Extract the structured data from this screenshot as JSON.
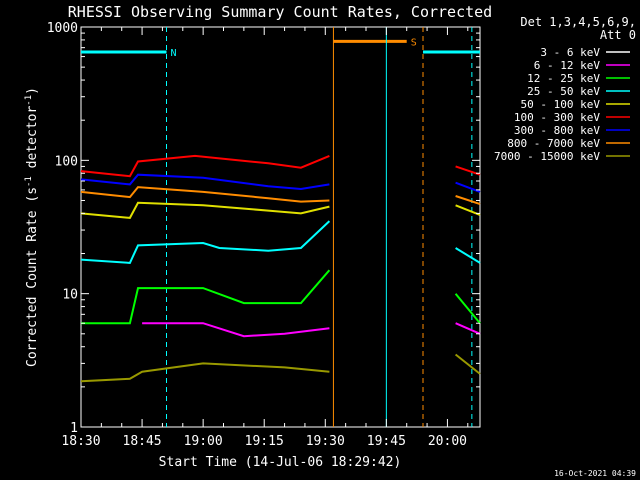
{
  "chart_data": {
    "type": "line",
    "title": "RHESSI Observing Summary Count Rates, Corrected",
    "xlabel": "Start Time (14-Jul-06 18:29:42)",
    "ylabel_main": "Corrected Count Rate (s",
    "ylabel_sup1": "-1",
    "ylabel_mid": " detector",
    "ylabel_sup2": "-1",
    "ylabel_end": ")",
    "yscale": "log",
    "ylim": [
      1,
      1000
    ],
    "xlim_minutes": [
      0,
      98
    ],
    "x_ticks": [
      {
        "minute": 0,
        "label": "18:30"
      },
      {
        "minute": 15,
        "label": "18:45"
      },
      {
        "minute": 30,
        "label": "19:00"
      },
      {
        "minute": 45,
        "label": "19:15"
      },
      {
        "minute": 60,
        "label": "19:30"
      },
      {
        "minute": 75,
        "label": "19:45"
      },
      {
        "minute": 90,
        "label": "20:00"
      }
    ],
    "y_ticks": [
      {
        "value": 1,
        "label": "1"
      },
      {
        "value": 10,
        "label": "10"
      },
      {
        "value": 100,
        "label": "100"
      },
      {
        "value": 1000,
        "label": "1000"
      }
    ],
    "legend_header": [
      "Det 1,3,4,5,6,9,",
      "Att 0"
    ],
    "legend_position": "right",
    "series": [
      {
        "name": "3 - 6 keV",
        "color": "#ffffff"
      },
      {
        "name": "6 - 12 keV",
        "color": "#ff00ff"
      },
      {
        "name": "12 - 25 keV",
        "color": "#00ff00"
      },
      {
        "name": "25 - 50 keV",
        "color": "#00ffff"
      },
      {
        "name": "50 - 100 keV",
        "color": "#e0e000"
      },
      {
        "name": "100 - 300 keV",
        "color": "#ff0000"
      },
      {
        "name": "300 - 800 keV",
        "color": "#0000ff"
      },
      {
        "name": "800 - 7000 keV",
        "color": "#ff8c00"
      },
      {
        "name": "7000 - 15000 keV",
        "color": "#999900"
      }
    ],
    "segments_before_gap": [
      {
        "series": "100 - 300 keV",
        "x": [
          0,
          12,
          14,
          28,
          46,
          54,
          61
        ],
        "y": [
          83,
          76,
          98,
          108,
          95,
          88,
          108
        ]
      },
      {
        "series": "300 - 800 keV",
        "x": [
          0,
          12,
          14,
          30,
          46,
          54,
          61
        ],
        "y": [
          72,
          66,
          78,
          74,
          64,
          61,
          66
        ]
      },
      {
        "series": "800 - 7000 keV",
        "x": [
          0,
          12,
          14,
          30,
          46,
          54,
          61
        ],
        "y": [
          58,
          53,
          63,
          58,
          52,
          49,
          50
        ]
      },
      {
        "series": "50 - 100 keV",
        "x": [
          0,
          12,
          14,
          30,
          46,
          54,
          61
        ],
        "y": [
          40,
          37,
          48,
          46,
          42,
          40,
          45
        ]
      },
      {
        "series": "25 - 50 keV",
        "x": [
          0,
          12,
          14,
          30,
          34,
          46,
          54,
          61
        ],
        "y": [
          18,
          17,
          23,
          24,
          22,
          21,
          22,
          35
        ]
      },
      {
        "series": "12 - 25 keV",
        "x": [
          0,
          12,
          14,
          30,
          40,
          54,
          61
        ],
        "y": [
          6,
          6,
          11,
          11,
          8.5,
          8.5,
          15
        ]
      },
      {
        "series": "6 - 12 keV",
        "x": [
          15,
          30,
          40,
          50,
          61
        ],
        "y": [
          6,
          6,
          4.8,
          5,
          5.5
        ]
      },
      {
        "series": "7000 - 15000 keV",
        "x": [
          0,
          12,
          15,
          30,
          50,
          61
        ],
        "y": [
          2.2,
          2.3,
          2.6,
          3,
          2.8,
          2.6
        ]
      }
    ],
    "segments_after_gap": [
      {
        "series": "100 - 300 keV",
        "x": [
          92,
          98
        ],
        "y": [
          90,
          78
        ]
      },
      {
        "series": "300 - 800 keV",
        "x": [
          92,
          98
        ],
        "y": [
          68,
          58
        ]
      },
      {
        "series": "800 - 7000 keV",
        "x": [
          92,
          98
        ],
        "y": [
          54,
          47
        ]
      },
      {
        "series": "50 - 100 keV",
        "x": [
          92,
          98
        ],
        "y": [
          46,
          39
        ]
      },
      {
        "series": "25 - 50 keV",
        "x": [
          92,
          98
        ],
        "y": [
          22,
          17
        ]
      },
      {
        "series": "12 - 25 keV",
        "x": [
          92,
          98
        ],
        "y": [
          10,
          6
        ]
      },
      {
        "series": "6 - 12 keV",
        "x": [
          92,
          98
        ],
        "y": [
          6,
          5
        ]
      },
      {
        "series": "7000 - 15000 keV",
        "x": [
          92,
          98
        ],
        "y": [
          3.5,
          2.5
        ]
      }
    ],
    "flags": [
      {
        "label": "N",
        "color": "#00ffff",
        "ranges": [
          [
            0,
            21
          ],
          [
            84,
            98
          ]
        ],
        "level": 650
      },
      {
        "label": "S",
        "color": "#ff8c00",
        "ranges": [
          [
            62,
            80
          ]
        ],
        "level": 780
      }
    ],
    "gap_lines": [
      {
        "minute": 62,
        "color": "#ff8c00",
        "style": "solid"
      },
      {
        "minute": 75,
        "color": "#00ffff",
        "style": "solid"
      },
      {
        "minute": 84,
        "color": "#ff8c00",
        "style": "dashed"
      },
      {
        "minute": 21,
        "color": "#00ffff",
        "style": "dashed"
      },
      {
        "minute": 96,
        "color": "#00ffff",
        "style": "dashed"
      }
    ]
  },
  "footer": {
    "timestamp": "16-Oct-2021 04:39"
  }
}
